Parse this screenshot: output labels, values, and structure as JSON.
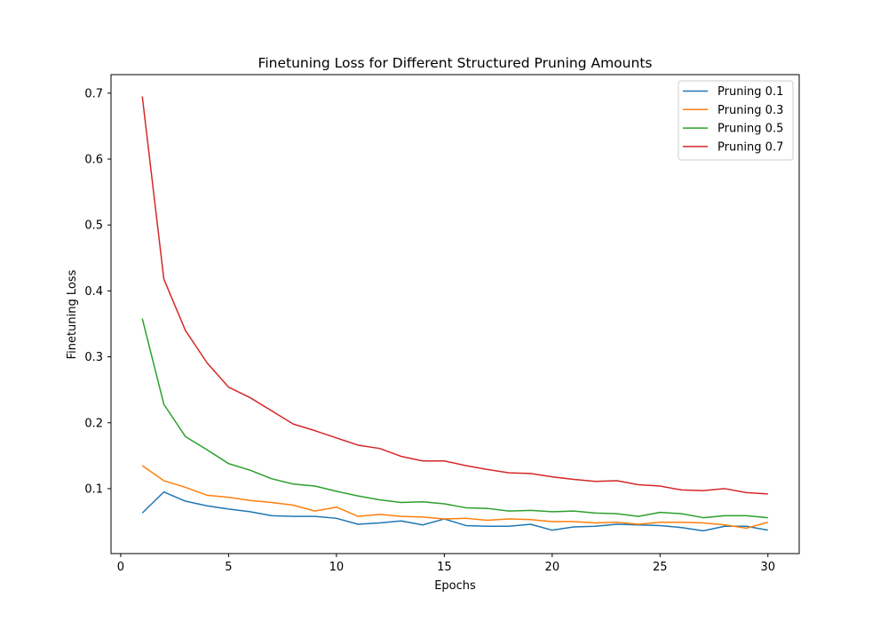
{
  "chart_data": {
    "type": "line",
    "title": "Finetuning Loss for Different Structured Pruning Amounts",
    "xlabel": "Epochs",
    "ylabel": "Finetuning Loss",
    "xlim": [
      -0.45,
      31.45
    ],
    "ylim": [
      0.0015,
      0.7281
    ],
    "xticks": [
      0,
      5,
      10,
      15,
      20,
      25,
      30
    ],
    "yticks": [
      0.1,
      0.2,
      0.3,
      0.4,
      0.5,
      0.6,
      0.7
    ],
    "grid": false,
    "legend_position": "top-right",
    "x": [
      1,
      2,
      3,
      4,
      5,
      6,
      7,
      8,
      9,
      10,
      11,
      12,
      13,
      14,
      15,
      16,
      17,
      18,
      19,
      20,
      21,
      22,
      23,
      24,
      25,
      26,
      27,
      28,
      29,
      30
    ],
    "series": [
      {
        "name": "Pruning 0.1",
        "color": "#1f77b4",
        "values": [
          0.063,
          0.095,
          0.081,
          0.074,
          0.069,
          0.065,
          0.059,
          0.058,
          0.058,
          0.055,
          0.046,
          0.048,
          0.051,
          0.045,
          0.054,
          0.044,
          0.043,
          0.043,
          0.046,
          0.037,
          0.042,
          0.043,
          0.046,
          0.045,
          0.044,
          0.041,
          0.036,
          0.043,
          0.043,
          0.037
        ]
      },
      {
        "name": "Pruning 0.3",
        "color": "#ff7f0e",
        "values": [
          0.135,
          0.112,
          0.102,
          0.09,
          0.087,
          0.082,
          0.079,
          0.075,
          0.066,
          0.072,
          0.058,
          0.061,
          0.058,
          0.057,
          0.054,
          0.055,
          0.052,
          0.054,
          0.053,
          0.05,
          0.05,
          0.048,
          0.049,
          0.046,
          0.049,
          0.049,
          0.048,
          0.045,
          0.04,
          0.049
        ]
      },
      {
        "name": "Pruning 0.5",
        "color": "#2ca02c",
        "values": [
          0.358,
          0.228,
          0.179,
          0.159,
          0.138,
          0.128,
          0.115,
          0.107,
          0.104,
          0.096,
          0.089,
          0.083,
          0.079,
          0.08,
          0.077,
          0.071,
          0.07,
          0.066,
          0.067,
          0.065,
          0.066,
          0.063,
          0.062,
          0.058,
          0.064,
          0.062,
          0.056,
          0.059,
          0.059,
          0.056
        ]
      },
      {
        "name": "Pruning 0.7",
        "color": "#d62728",
        "values": [
          0.695,
          0.418,
          0.34,
          0.291,
          0.254,
          0.238,
          0.218,
          0.198,
          0.188,
          0.177,
          0.166,
          0.161,
          0.149,
          0.142,
          0.142,
          0.135,
          0.129,
          0.124,
          0.123,
          0.118,
          0.114,
          0.111,
          0.112,
          0.106,
          0.104,
          0.098,
          0.097,
          0.1,
          0.094,
          0.092
        ]
      }
    ]
  }
}
